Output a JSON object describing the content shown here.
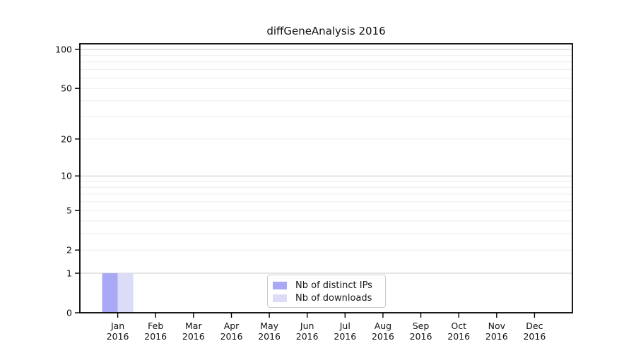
{
  "title": "diffGeneAnalysis 2016",
  "chart_data": {
    "type": "bar",
    "title": "diffGeneAnalysis 2016",
    "categories": [
      "Jan",
      "Feb",
      "Mar",
      "Apr",
      "May",
      "Jun",
      "Jul",
      "Aug",
      "Sep",
      "Oct",
      "Nov",
      "Dec"
    ],
    "x_year_label": "2016",
    "series": [
      {
        "name": "Nb of distinct IPs",
        "color": "#a8a8f5",
        "values": [
          1,
          0,
          0,
          0,
          0,
          0,
          0,
          0,
          0,
          0,
          0,
          0
        ]
      },
      {
        "name": "Nb of downloads",
        "color": "#dcdcf8",
        "values": [
          1,
          0,
          0,
          0,
          0,
          0,
          0,
          0,
          0,
          0,
          0,
          0
        ]
      }
    ],
    "y_scale": "log1p",
    "ylim": [
      0,
      110.4
    ],
    "y_ticks": [
      0,
      1,
      2,
      5,
      10,
      20,
      50,
      100
    ],
    "y_major_gridlines": [
      1,
      10,
      100
    ],
    "y_minor_gridlines": [
      2,
      3,
      4,
      5,
      6,
      7,
      8,
      9,
      20,
      30,
      40,
      50,
      60,
      70,
      80,
      90
    ],
    "grid": true,
    "legend_position": "lower center",
    "colors": {
      "axis": "#000000",
      "tick_label": "#111111",
      "grid_major": "#c9c9c9",
      "grid_minor": "#ededed",
      "background": "#ffffff"
    }
  }
}
